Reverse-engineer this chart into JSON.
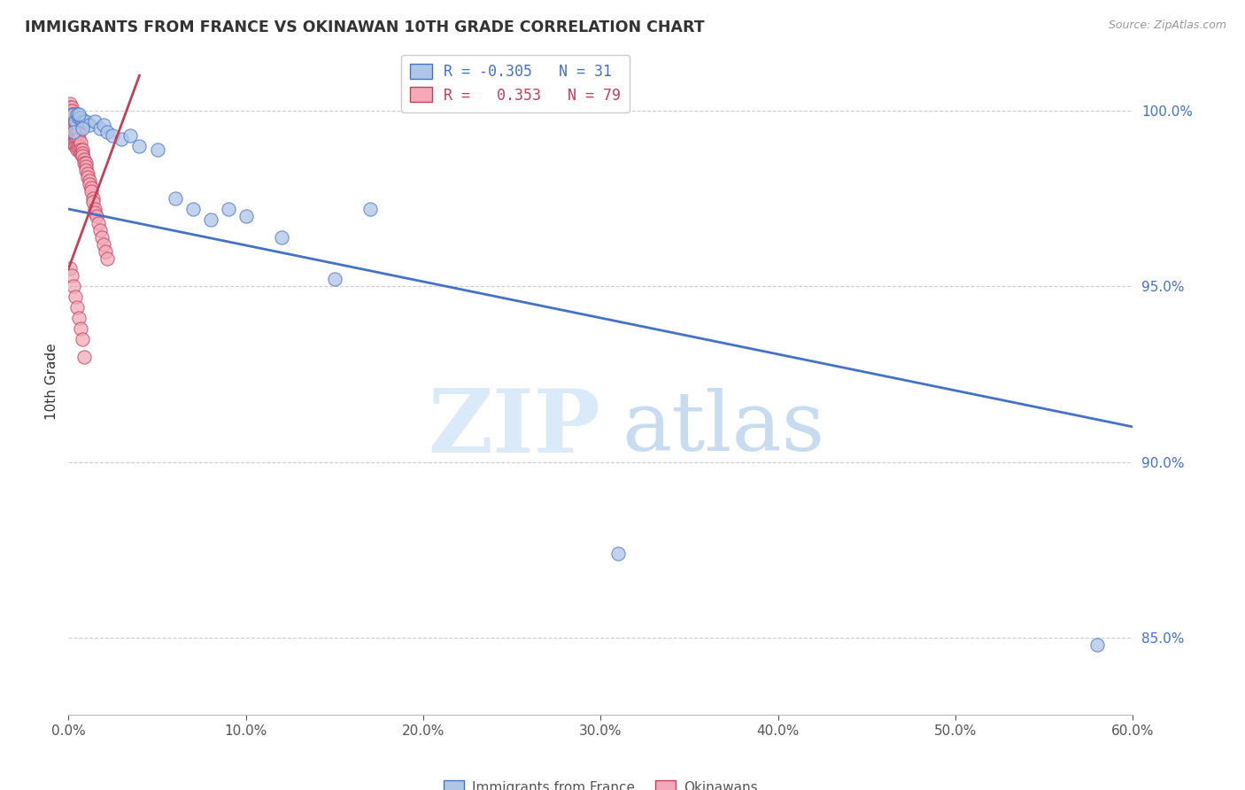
{
  "title": "IMMIGRANTS FROM FRANCE VS OKINAWAN 10TH GRADE CORRELATION CHART",
  "source": "Source: ZipAtlas.com",
  "ylabel": "10th Grade",
  "ytick_labels": [
    "85.0%",
    "90.0%",
    "95.0%",
    "100.0%"
  ],
  "ytick_values": [
    0.85,
    0.9,
    0.95,
    1.0
  ],
  "xmin": 0.0,
  "xmax": 0.6,
  "ymin": 0.828,
  "ymax": 1.018,
  "legend_blue_r": "-0.305",
  "legend_blue_n": "31",
  "legend_pink_r": "0.353",
  "legend_pink_n": "79",
  "legend_label_blue": "Immigrants from France",
  "legend_label_pink": "Okinawans",
  "blue_color": "#aec6e8",
  "pink_color": "#f4a8b8",
  "blue_line_color": "#4472c4",
  "pink_line_color": "#c0405a",
  "blue_trend_x": [
    0.0,
    0.6
  ],
  "blue_trend_y": [
    0.972,
    0.91
  ],
  "pink_trend_x": [
    0.0,
    0.04
  ],
  "pink_trend_y": [
    0.955,
    1.01
  ],
  "blue_scatter_x": [
    0.003,
    0.004,
    0.005,
    0.006,
    0.007,
    0.008,
    0.009,
    0.01,
    0.012,
    0.015,
    0.018,
    0.02,
    0.022,
    0.025,
    0.03,
    0.035,
    0.04,
    0.05,
    0.06,
    0.07,
    0.08,
    0.09,
    0.1,
    0.12,
    0.15,
    0.17,
    0.31,
    0.58,
    0.003,
    0.006,
    0.008
  ],
  "blue_scatter_y": [
    0.999,
    0.997,
    0.999,
    0.998,
    0.998,
    0.997,
    0.997,
    0.997,
    0.996,
    0.997,
    0.995,
    0.996,
    0.994,
    0.993,
    0.992,
    0.993,
    0.99,
    0.989,
    0.975,
    0.972,
    0.969,
    0.972,
    0.97,
    0.964,
    0.952,
    0.972,
    0.874,
    0.848,
    0.994,
    0.999,
    0.995
  ],
  "pink_scatter_x": [
    0.001,
    0.001,
    0.001,
    0.001,
    0.001,
    0.001,
    0.001,
    0.001,
    0.001,
    0.001,
    0.002,
    0.002,
    0.002,
    0.002,
    0.002,
    0.002,
    0.002,
    0.002,
    0.002,
    0.002,
    0.003,
    0.003,
    0.003,
    0.003,
    0.003,
    0.003,
    0.003,
    0.004,
    0.004,
    0.004,
    0.004,
    0.004,
    0.004,
    0.005,
    0.005,
    0.005,
    0.005,
    0.005,
    0.006,
    0.006,
    0.006,
    0.006,
    0.007,
    0.007,
    0.007,
    0.008,
    0.008,
    0.008,
    0.009,
    0.009,
    0.01,
    0.01,
    0.01,
    0.011,
    0.011,
    0.012,
    0.012,
    0.013,
    0.013,
    0.014,
    0.014,
    0.015,
    0.015,
    0.016,
    0.017,
    0.018,
    0.019,
    0.02,
    0.021,
    0.022,
    0.001,
    0.002,
    0.003,
    0.004,
    0.005,
    0.006,
    0.007,
    0.008,
    0.009
  ],
  "pink_scatter_y": [
    1.002,
    1.001,
    1.0,
    0.999,
    0.999,
    0.998,
    0.997,
    0.996,
    0.995,
    0.994,
    1.001,
    1.0,
    0.999,
    0.997,
    0.996,
    0.995,
    0.994,
    0.993,
    0.992,
    0.991,
    0.999,
    0.997,
    0.996,
    0.995,
    0.993,
    0.992,
    0.991,
    0.997,
    0.995,
    0.993,
    0.992,
    0.991,
    0.99,
    0.996,
    0.994,
    0.992,
    0.99,
    0.989,
    0.994,
    0.992,
    0.99,
    0.989,
    0.991,
    0.989,
    0.988,
    0.989,
    0.988,
    0.987,
    0.986,
    0.985,
    0.985,
    0.984,
    0.983,
    0.982,
    0.981,
    0.98,
    0.979,
    0.978,
    0.977,
    0.975,
    0.974,
    0.972,
    0.971,
    0.97,
    0.968,
    0.966,
    0.964,
    0.962,
    0.96,
    0.958,
    0.955,
    0.953,
    0.95,
    0.947,
    0.944,
    0.941,
    0.938,
    0.935,
    0.93
  ]
}
